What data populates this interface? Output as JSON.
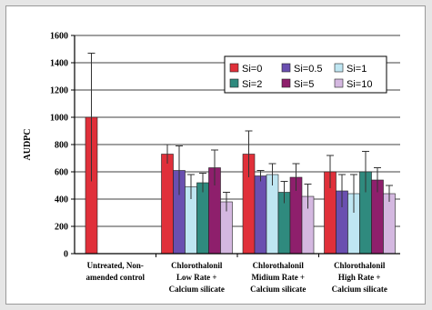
{
  "chart_data": {
    "type": "bar",
    "title": "",
    "xlabel": "",
    "ylabel": "AUDPC",
    "ylim": [
      0,
      1600
    ],
    "yticks": [
      "0",
      "200",
      "400",
      "600",
      "800",
      "1000",
      "1200",
      "1400",
      "1600"
    ],
    "grid": true,
    "legend_position": "top-right",
    "categories": [
      [
        "Untreated, Non-",
        "amended control"
      ],
      [
        "Chlorothalonil",
        "Low Rate +",
        "Calcium silicate"
      ],
      [
        "Chlorothalonil",
        "Midium Rate +",
        "Calcium silicate"
      ],
      [
        "Chlorothalonil",
        "High Rate +",
        "Calcium silicate"
      ]
    ],
    "series": [
      {
        "name": "Si=0",
        "color": "#e0303a",
        "values": [
          1000,
          730,
          730,
          600
        ],
        "error": [
          470,
          70,
          170,
          120
        ]
      },
      {
        "name": "Si=0.5",
        "color": "#6a4fb0",
        "values": [
          null,
          610,
          570,
          460
        ],
        "error": [
          null,
          180,
          40,
          120
        ]
      },
      {
        "name": "Si=1",
        "color": "#bfe6f2",
        "values": [
          null,
          490,
          580,
          440
        ],
        "error": [
          null,
          90,
          80,
          140
        ]
      },
      {
        "name": "Si=2",
        "color": "#2f8a7e",
        "values": [
          null,
          520,
          450,
          600
        ],
        "error": [
          null,
          70,
          80,
          150
        ]
      },
      {
        "name": "Si=5",
        "color": "#8e1f6c",
        "values": [
          null,
          630,
          560,
          540
        ],
        "error": [
          null,
          130,
          100,
          90
        ]
      },
      {
        "name": "Si=10",
        "color": "#d4b8e0",
        "values": [
          null,
          380,
          420,
          440
        ],
        "error": [
          null,
          70,
          90,
          60
        ]
      }
    ]
  }
}
